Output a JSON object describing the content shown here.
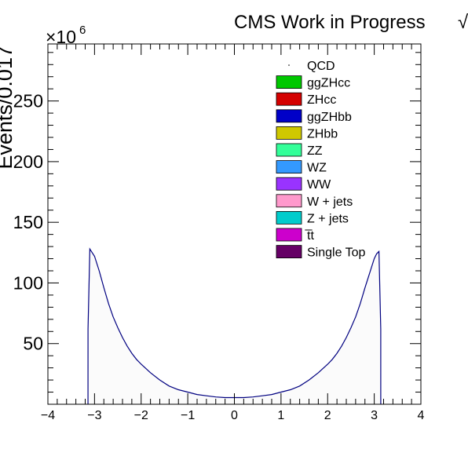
{
  "header": {
    "title": "CMS Work in Progress",
    "title_tail": "√"
  },
  "chart_data": {
    "type": "area",
    "ylabel": "Events/0.017",
    "xlabel": "",
    "multiplier": "×10",
    "multiplier_exp": "6",
    "xlim": [
      -4,
      4
    ],
    "ylim": [
      0,
      297
    ],
    "xticks": [
      -4,
      -3,
      -2,
      -1,
      0,
      1,
      2,
      3,
      4
    ],
    "xtick_labels": [
      "−4",
      "−3",
      "−2",
      "−1",
      "0",
      "1",
      "2",
      "3",
      "4"
    ],
    "yticks": [
      50,
      100,
      150,
      200,
      250
    ],
    "ytick_labels": [
      "50",
      "100",
      "150",
      "200",
      "250"
    ],
    "grid": false,
    "legend_position": "top-right",
    "legend": [
      {
        "name": "QCD",
        "color": "#ffffff",
        "marker": "dot"
      },
      {
        "name": "ggZHcc",
        "color": "#00c800"
      },
      {
        "name": "ZHcc",
        "color": "#d40000"
      },
      {
        "name": "ggZHbb",
        "color": "#0000c8"
      },
      {
        "name": "ZHbb",
        "color": "#cfc800"
      },
      {
        "name": "ZZ",
        "color": "#33ff99"
      },
      {
        "name": "WZ",
        "color": "#3399ff"
      },
      {
        "name": "WW",
        "color": "#9933ff"
      },
      {
        "name": "W + jets",
        "color": "#ff99cc"
      },
      {
        "name": "Z + jets",
        "color": "#00cccc"
      },
      {
        "name": "t̅t",
        "color": "#cc00cc"
      },
      {
        "name": "Single Top",
        "color": "#660066"
      }
    ],
    "series": [
      {
        "name": "QCD",
        "line_color": "#000080",
        "fill_color": "#fbfbfb",
        "x": [
          -3.14,
          -3.1,
          -3.0,
          -2.9,
          -2.8,
          -2.7,
          -2.6,
          -2.5,
          -2.4,
          -2.3,
          -2.2,
          -2.1,
          -2.0,
          -1.8,
          -1.6,
          -1.4,
          -1.2,
          -1.0,
          -0.8,
          -0.6,
          -0.4,
          -0.2,
          0.0,
          0.2,
          0.4,
          0.6,
          0.8,
          1.0,
          1.2,
          1.4,
          1.6,
          1.8,
          2.0,
          2.1,
          2.2,
          2.3,
          2.4,
          2.5,
          2.6,
          2.7,
          2.8,
          2.9,
          3.0,
          3.05,
          3.1,
          3.14
        ],
        "y": [
          62,
          128,
          122,
          110,
          96,
          83,
          72,
          63,
          55,
          48,
          42,
          37,
          33,
          26,
          20,
          15,
          12,
          10,
          8,
          7,
          6,
          5.5,
          5.5,
          5.5,
          6,
          7,
          8,
          10,
          12,
          15,
          20,
          26,
          33,
          37,
          42,
          48,
          55,
          63,
          72,
          83,
          96,
          108,
          120,
          124,
          126,
          62
        ]
      }
    ]
  }
}
